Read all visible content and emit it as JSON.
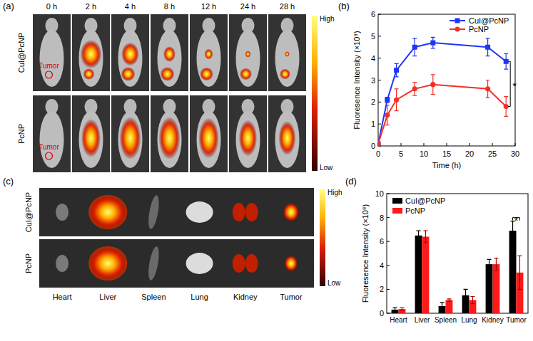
{
  "chart_data": [
    {
      "panel": "(b)",
      "type": "line",
      "x_label": "Time (h)",
      "y_label": "Fluoresence Intensity (×10⁸)",
      "x": [
        0,
        2,
        4,
        8,
        12,
        24,
        28
      ],
      "series": [
        {
          "name": "CuI@PcNP",
          "color": "#1f35f5",
          "marker": "square",
          "values": [
            0.1,
            2.1,
            3.45,
            4.5,
            4.7,
            4.5,
            3.85
          ],
          "errors": [
            0.05,
            0.12,
            0.3,
            0.4,
            0.25,
            0.4,
            0.35
          ]
        },
        {
          "name": "PcNP",
          "color": "#f2302a",
          "marker": "circle",
          "values": [
            0.1,
            1.4,
            2.1,
            2.6,
            2.8,
            2.6,
            1.8
          ],
          "errors": [
            0.05,
            0.45,
            0.5,
            0.3,
            0.45,
            0.4,
            0.45
          ]
        }
      ],
      "xlim": [
        0,
        30
      ],
      "xticks": [
        0,
        5,
        10,
        15,
        20,
        25,
        30
      ],
      "ylim": [
        0,
        6
      ],
      "yticks": [
        0,
        1,
        2,
        3,
        4,
        5,
        6
      ],
      "grid": false,
      "legend": "top-right",
      "annotations": [
        {
          "text": "*",
          "index": 6
        }
      ]
    },
    {
      "panel": "(d)",
      "type": "bar",
      "y_label": "Fluoresence Intensity (×10⁸)",
      "categories": [
        "Heart",
        "Liver",
        "Spleen",
        "Lung",
        "Kidney",
        "Tumor"
      ],
      "series": [
        {
          "name": "CuI@PcNP",
          "color": "#000000",
          "values": [
            0.3,
            6.5,
            0.6,
            1.5,
            4.1,
            6.9
          ],
          "errors": [
            0.15,
            0.4,
            0.3,
            0.5,
            0.4,
            0.8
          ]
        },
        {
          "name": "PcNP",
          "color": "#ff1a1a",
          "values": [
            0.35,
            6.4,
            1.1,
            1.1,
            4.1,
            3.4
          ],
          "errors": [
            0.1,
            0.5,
            0.1,
            0.3,
            0.5,
            1.4
          ]
        }
      ],
      "ylim": [
        0,
        10
      ],
      "yticks": [
        0,
        2,
        4,
        6,
        8,
        10
      ],
      "grid": false,
      "legend": "top-left",
      "annotations": [
        {
          "text": "*",
          "index": 5
        }
      ]
    }
  ],
  "image_panels": [
    {
      "panel": "(a)",
      "columns": [
        "0 h",
        "2 h",
        "4 h",
        "8 h",
        "12 h",
        "24 h",
        "28 h"
      ],
      "rows": [
        "CuI@PcNP",
        "PcNP"
      ],
      "marker_label": "Tumor",
      "colorbar": [
        "High",
        "Low"
      ]
    },
    {
      "panel": "(c)",
      "columns": [
        "Heart",
        "Liver",
        "Spleen",
        "Lung",
        "Kidney",
        "Tumor"
      ],
      "rows": [
        "CuI@PcNP",
        "PcNP"
      ],
      "colorbar": [
        "High",
        "Low"
      ]
    }
  ]
}
